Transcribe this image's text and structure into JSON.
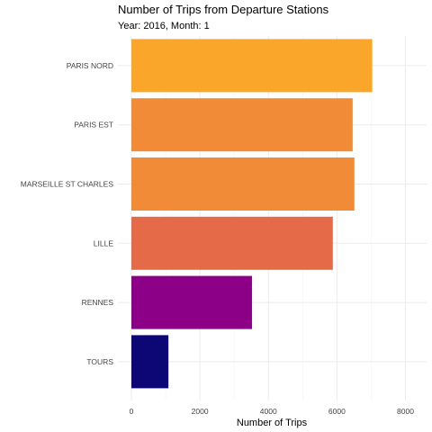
{
  "chart_data": {
    "type": "bar",
    "orientation": "horizontal",
    "title": "Number of Trips from Departure Stations",
    "subtitle": "Year: 2016, Month: 1",
    "xlabel": "Number of Trips",
    "ylabel": "",
    "xlim": [
      0,
      8600
    ],
    "x_ticks": [
      0,
      2000,
      4000,
      6000,
      8000
    ],
    "x_tick_labels": [
      "0",
      "2000",
      "4000",
      "6000",
      "8000"
    ],
    "grid": true,
    "legend": "none",
    "categories": [
      "PARIS NORD",
      "PARIS EST",
      "MARSEILLE ST CHARLES",
      "LILLE",
      "RENNES",
      "TOURS"
    ],
    "values": [
      7030,
      6460,
      6510,
      5880,
      3520,
      1080
    ],
    "colors": [
      "#F9A62B",
      "#F28B38",
      "#F28B38",
      "#E56A47",
      "#8B0087",
      "#0D0776"
    ]
  }
}
